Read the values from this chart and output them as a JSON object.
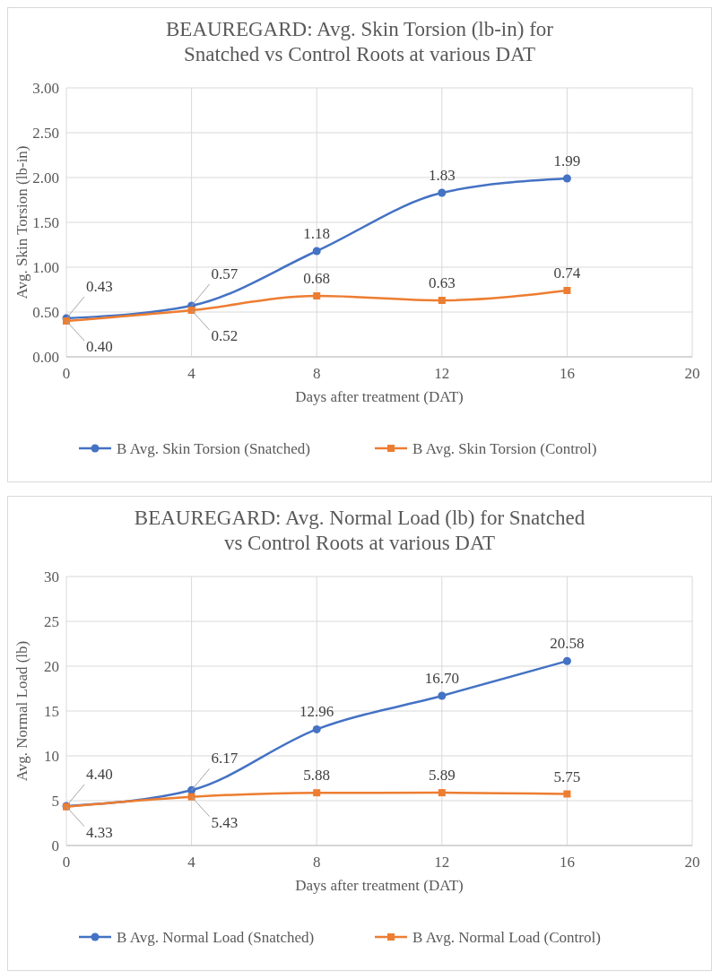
{
  "chart_data": [
    {
      "type": "line",
      "title": "BEAUREGARD: Avg. Skin Torsion (lb-in) for Snatched vs Control Roots at various DAT",
      "xlabel": "Days after treatment (DAT)",
      "ylabel": "Avg. Skin Torsion (lb-in)",
      "x": [
        0,
        4,
        8,
        12,
        16
      ],
      "xlim": [
        0,
        20
      ],
      "xticks": [
        0,
        4,
        8,
        12,
        16,
        20
      ],
      "ylim": [
        0,
        3
      ],
      "yticks": [
        {
          "value": 0,
          "label": "0.00"
        },
        {
          "value": 0.5,
          "label": "0.50"
        },
        {
          "value": 1,
          "label": "1.00"
        },
        {
          "value": 1.5,
          "label": "1.50"
        },
        {
          "value": 2,
          "label": "2.00"
        },
        {
          "value": 2.5,
          "label": "2.50"
        },
        {
          "value": 3,
          "label": "3.00"
        }
      ],
      "grid": true,
      "legend": "bottom",
      "series": [
        {
          "name": "B Avg. Skin Torsion (Snatched)",
          "color": "#4472c4",
          "marker": "circle",
          "values": [
            0.43,
            0.57,
            1.18,
            1.83,
            1.99
          ],
          "value_labels": [
            "0.43",
            "0.57",
            "1.18",
            "1.83",
            "1.99"
          ]
        },
        {
          "name": "B Avg. Skin Torsion (Control)",
          "color": "#ed7d31",
          "marker": "square",
          "values": [
            0.4,
            0.52,
            0.68,
            0.63,
            0.74
          ],
          "value_labels": [
            "0.40",
            "0.52",
            "0.68",
            "0.63",
            "0.74"
          ]
        }
      ]
    },
    {
      "type": "line",
      "title": "BEAUREGARD: Avg. Normal Load (lb) for Snatched vs Control Roots at various DAT",
      "xlabel": "Days after treatment (DAT)",
      "ylabel": "Avg. Normal Load (lb)",
      "x": [
        0,
        4,
        8,
        12,
        16
      ],
      "xlim": [
        0,
        20
      ],
      "xticks": [
        0,
        4,
        8,
        12,
        16,
        20
      ],
      "ylim": [
        0,
        30
      ],
      "yticks": [
        0,
        5,
        10,
        15,
        20,
        25,
        30
      ],
      "grid": true,
      "legend": "bottom",
      "series": [
        {
          "name": "B Avg. Normal Load (Snatched)",
          "color": "#4472c4",
          "marker": "circle",
          "values": [
            4.4,
            6.17,
            12.96,
            16.7,
            20.58
          ],
          "value_labels": [
            "4.40",
            "6.17",
            "12.96",
            "16.70",
            "20.58"
          ]
        },
        {
          "name": "B Avg. Normal Load (Control)",
          "color": "#ed7d31",
          "marker": "square",
          "values": [
            4.33,
            5.43,
            5.88,
            5.89,
            5.75
          ],
          "value_labels": [
            "4.33",
            "5.43",
            "5.88",
            "5.89",
            "5.75"
          ]
        }
      ]
    }
  ]
}
